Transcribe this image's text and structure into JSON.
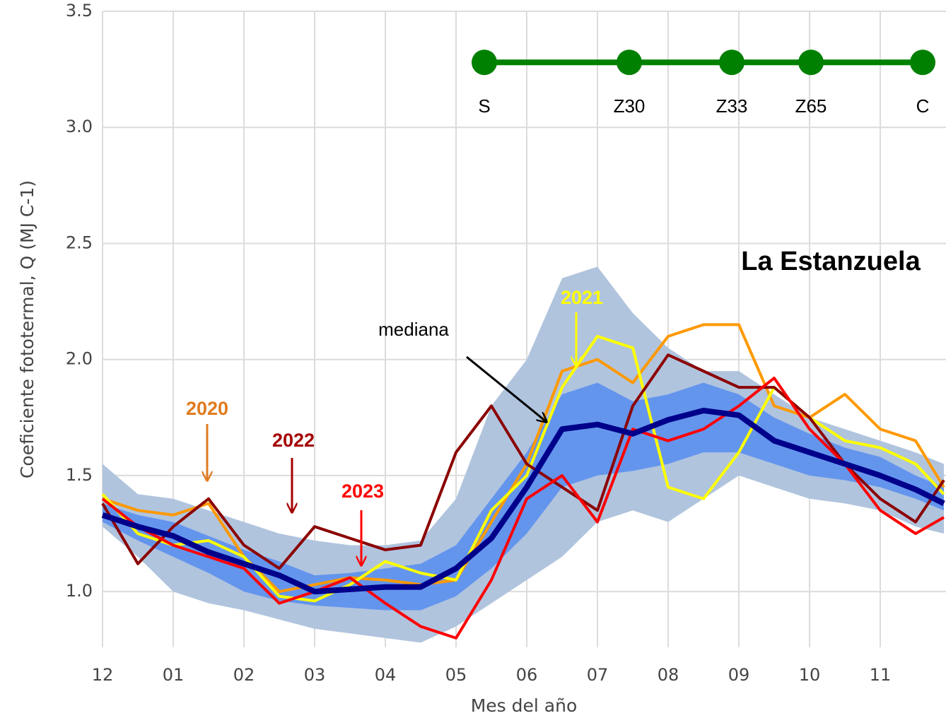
{
  "chart_data": {
    "type": "line",
    "site": "La Estanzuela",
    "x_label": "Mes del año",
    "y_label": "Coeficiente fototermal, Q (MJ C-1)",
    "xlim": [
      0,
      11.93
    ],
    "xticks": [
      {
        "value": 0,
        "label": "12"
      },
      {
        "value": 1,
        "label": "01"
      },
      {
        "value": 2,
        "label": "02"
      },
      {
        "value": 3,
        "label": "03"
      },
      {
        "value": 4,
        "label": "04"
      },
      {
        "value": 5,
        "label": "05"
      },
      {
        "value": 6,
        "label": "06"
      },
      {
        "value": 7,
        "label": "07"
      },
      {
        "value": 8,
        "label": "08"
      },
      {
        "value": 9,
        "label": "09"
      },
      {
        "value": 10,
        "label": "10"
      },
      {
        "value": 11,
        "label": "11"
      }
    ],
    "ylim": [
      0.76,
      3.5
    ],
    "yticks": [
      {
        "value": 1,
        "label": "1.0"
      },
      1.5,
      {
        "value": 2,
        "label": "2.0"
      },
      2.5,
      {
        "value": 3,
        "label": "3.0"
      },
      3.5
    ],
    "grid": true,
    "x": [
      0,
      0.5,
      1,
      1.5,
      2,
      2.5,
      3,
      3.5,
      4,
      4.5,
      5,
      5.5,
      6,
      6.5,
      7,
      7.5,
      8,
      8.5,
      9,
      9.5,
      10,
      10.5,
      11,
      11.5,
      11.9
    ],
    "bands": [
      {
        "color": "#b0c4de",
        "lower": [
          1.28,
          1.15,
          1.0,
          0.95,
          0.92,
          0.88,
          0.84,
          0.82,
          0.8,
          0.78,
          0.85,
          0.95,
          1.05,
          1.15,
          1.3,
          1.35,
          1.3,
          1.4,
          1.5,
          1.45,
          1.4,
          1.38,
          1.35,
          1.28,
          1.25
        ],
        "upper": [
          1.55,
          1.42,
          1.4,
          1.35,
          1.3,
          1.25,
          1.22,
          1.2,
          1.2,
          1.22,
          1.4,
          1.8,
          2.0,
          2.35,
          2.4,
          2.2,
          2.05,
          1.95,
          1.95,
          1.85,
          1.75,
          1.7,
          1.65,
          1.6,
          1.55
        ]
      },
      {
        "color": "#6495ed",
        "lower": [
          1.3,
          1.22,
          1.15,
          1.08,
          1.0,
          0.96,
          0.94,
          0.93,
          0.92,
          0.92,
          0.98,
          1.1,
          1.25,
          1.45,
          1.5,
          1.52,
          1.55,
          1.6,
          1.6,
          1.55,
          1.5,
          1.48,
          1.45,
          1.4,
          1.35
        ],
        "upper": [
          1.38,
          1.33,
          1.3,
          1.24,
          1.18,
          1.13,
          1.07,
          1.08,
          1.1,
          1.12,
          1.2,
          1.4,
          1.6,
          1.85,
          1.9,
          1.82,
          1.85,
          1.9,
          1.85,
          1.75,
          1.68,
          1.62,
          1.58,
          1.5,
          1.45
        ]
      }
    ],
    "series": [
      {
        "name": "2020",
        "color": "#ff9900",
        "values": [
          1.4,
          1.35,
          1.33,
          1.38,
          1.15,
          1.0,
          1.03,
          1.06,
          1.05,
          1.03,
          1.05,
          1.3,
          1.55,
          1.95,
          2.0,
          1.9,
          2.1,
          2.15,
          2.15,
          1.8,
          1.75,
          1.85,
          1.7,
          1.65,
          1.45
        ]
      },
      {
        "name": "2021",
        "color": "#ffff00",
        "values": [
          1.42,
          1.25,
          1.2,
          1.22,
          1.15,
          0.98,
          0.96,
          1.03,
          1.13,
          1.08,
          1.05,
          1.35,
          1.5,
          1.88,
          2.1,
          2.05,
          1.45,
          1.4,
          1.6,
          1.88,
          1.75,
          1.65,
          1.62,
          1.55,
          1.42
        ]
      },
      {
        "name": "2022",
        "color": "#8b0000",
        "values": [
          1.38,
          1.12,
          1.28,
          1.4,
          1.2,
          1.1,
          1.28,
          1.23,
          1.18,
          1.2,
          1.6,
          1.8,
          1.55,
          1.45,
          1.35,
          1.8,
          2.02,
          1.95,
          1.88,
          1.88,
          1.75,
          1.55,
          1.4,
          1.3,
          1.48
        ]
      },
      {
        "name": "2023",
        "color": "#ff0000",
        "values": [
          1.4,
          1.28,
          1.2,
          1.15,
          1.1,
          0.95,
          1.0,
          1.06,
          0.95,
          0.85,
          0.8,
          1.05,
          1.4,
          1.5,
          1.3,
          1.7,
          1.65,
          1.7,
          1.8,
          1.92,
          1.7,
          1.55,
          1.35,
          1.25,
          1.32
        ]
      },
      {
        "name": "mediana",
        "color": "#00008b",
        "values": [
          1.33,
          1.28,
          1.24,
          1.17,
          1.12,
          1.07,
          1.0,
          1.01,
          1.02,
          1.02,
          1.1,
          1.23,
          1.45,
          1.7,
          1.72,
          1.68,
          1.74,
          1.78,
          1.76,
          1.65,
          1.6,
          1.55,
          1.5,
          1.44,
          1.38
        ]
      }
    ],
    "phenology": {
      "color": "#008000",
      "y": 3.28,
      "stages": [
        "S",
        "Z30",
        "Z33",
        "Z65",
        "C"
      ],
      "x": [
        5.4,
        7.45,
        8.9,
        10.02,
        11.6
      ]
    }
  }
}
